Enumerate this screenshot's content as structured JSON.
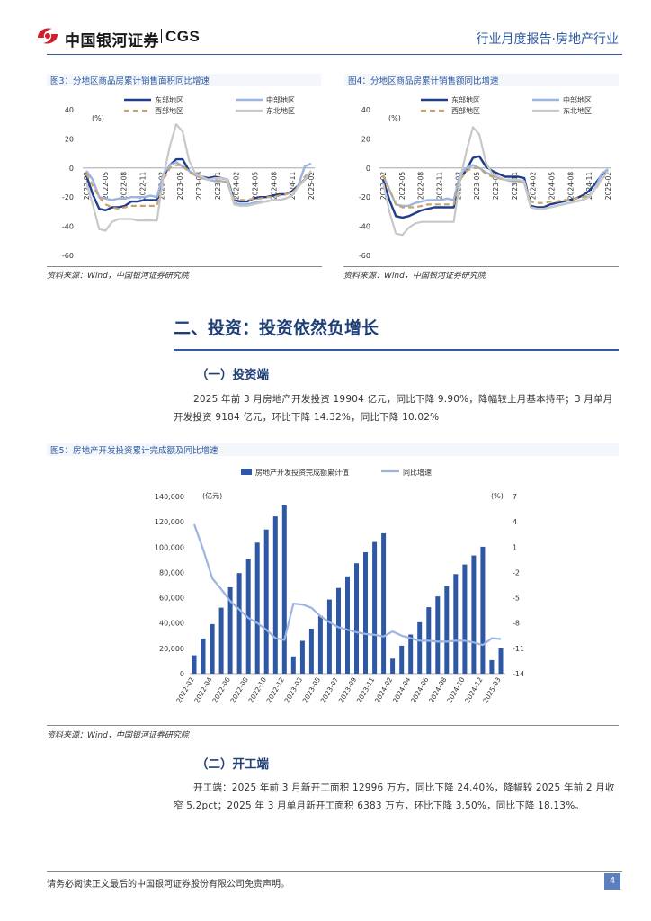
{
  "header": {
    "logo_cn": "中国银河证券",
    "logo_en": "CGS",
    "right": "行业月度报告·房地产行业"
  },
  "fig3": {
    "title": "图3：分地区商品房累计销售面积同比增速",
    "unit": "(%)",
    "source": "资料来源：Wind，中国银河证券研究院",
    "chart_data": {
      "type": "line",
      "ylim": [
        -60,
        40
      ],
      "yticks": [
        "40",
        "20",
        "0",
        "-20",
        "-40",
        "-60"
      ],
      "x_labels": [
        "2022-02",
        "2022-05",
        "2022-08",
        "2022-11",
        "2023-02",
        "2023-05",
        "2023-08",
        "2023-11",
        "2024-02",
        "2024-05",
        "2024-08",
        "2024-11",
        "2025-02"
      ],
      "series": [
        {
          "name": "东部地区",
          "color": "#1f3d8c",
          "width": 2.4,
          "dash": "",
          "values": [
            -5,
            -18,
            -28,
            -29,
            -27,
            -27,
            -26,
            -23,
            -23,
            -22,
            -22,
            -22,
            -6,
            2,
            6,
            6,
            -2,
            -5,
            -6,
            -7,
            -6,
            -7,
            -8,
            -22,
            -23,
            -23,
            -21,
            -20,
            -20,
            -19,
            -18,
            -18,
            -16,
            -12,
            -8,
            -3
          ]
        },
        {
          "name": "中部地区",
          "color": "#9bb4e0",
          "width": 2.4,
          "dash": "",
          "values": [
            -2,
            -8,
            -20,
            -21,
            -22,
            -21,
            -21,
            -20,
            -20,
            -20,
            -19,
            -20,
            -4,
            2,
            4,
            1,
            -2,
            -5,
            -7,
            -8,
            -9,
            -9,
            -10,
            -24,
            -25,
            -25,
            -24,
            -23,
            -23,
            -22,
            -22,
            -21,
            -19,
            -12,
            1,
            3
          ]
        },
        {
          "name": "西部地区",
          "color": "#c9a36a",
          "width": 2.2,
          "dash": "6,4",
          "values": [
            -4,
            -12,
            -20,
            -25,
            -27,
            -28,
            -27,
            -26,
            -26,
            -26,
            -26,
            -26,
            -8,
            0,
            2,
            2,
            -3,
            -5,
            -7,
            -8,
            -8,
            -9,
            -10,
            -21,
            -22,
            -22,
            -21,
            -21,
            -20,
            -20,
            -19,
            -18,
            -17,
            -13,
            -6,
            -2
          ]
        },
        {
          "name": "东北地区",
          "color": "#c8c8c8",
          "width": 2.2,
          "dash": "",
          "values": [
            -10,
            -25,
            -42,
            -43,
            -37,
            -35,
            -35,
            -35,
            -36,
            -36,
            -36,
            -36,
            -6,
            15,
            30,
            25,
            5,
            -4,
            -6,
            -8,
            -7,
            -7,
            -8,
            -25,
            -26,
            -26,
            -25,
            -24,
            -23,
            -22,
            -22,
            -21,
            -19,
            -13,
            -8,
            -2
          ]
        }
      ]
    }
  },
  "fig4": {
    "title": "图4：分地区商品房累计销售额同比增速",
    "unit": "(%)",
    "source": "资料来源：Wind，中国银河证券研究院",
    "chart_data": {
      "type": "line",
      "ylim": [
        -60,
        40
      ],
      "yticks": [
        "40",
        "20",
        "0",
        "-20",
        "-40",
        "-60"
      ],
      "x_labels": [
        "2022-02",
        "2022-05",
        "2022-08",
        "2022-11",
        "2023-02",
        "2023-05",
        "2023-08",
        "2023-11",
        "2024-02",
        "2024-05",
        "2024-08",
        "2024-11",
        "2025-02"
      ],
      "series": [
        {
          "name": "东部地区",
          "color": "#1f3d8c",
          "width": 2.4,
          "dash": "",
          "values": [
            -8,
            -22,
            -33,
            -34,
            -33,
            -31,
            -29,
            -28,
            -27,
            -27,
            -27,
            -27,
            -8,
            -1,
            7,
            8,
            1,
            -2,
            -4,
            -6,
            -6,
            -6,
            -7,
            -26,
            -27,
            -27,
            -25,
            -24,
            -23,
            -22,
            -21,
            -19,
            -16,
            -11,
            -5,
            -1
          ]
        },
        {
          "name": "中部地区",
          "color": "#9bb4e0",
          "width": 2.4,
          "dash": "",
          "values": [
            -5,
            -15,
            -25,
            -26,
            -26,
            -24,
            -23,
            -22,
            -22,
            -22,
            -21,
            -22,
            -4,
            0,
            2,
            0,
            -3,
            -5,
            -7,
            -8,
            -9,
            -9,
            -10,
            -27,
            -28,
            -28,
            -27,
            -26,
            -25,
            -24,
            -23,
            -22,
            -20,
            -14,
            -4,
            -1
          ]
        },
        {
          "name": "西部地区",
          "color": "#c9a36a",
          "width": 2.2,
          "dash": "6,4",
          "values": [
            -5,
            -15,
            -25,
            -27,
            -27,
            -27,
            -26,
            -25,
            -25,
            -25,
            -25,
            -25,
            -8,
            -2,
            0,
            0,
            -4,
            -6,
            -7,
            -8,
            -8,
            -9,
            -10,
            -23,
            -24,
            -24,
            -23,
            -23,
            -22,
            -22,
            -21,
            -20,
            -19,
            -15,
            -8,
            -3
          ]
        },
        {
          "name": "东北地区",
          "color": "#c8c8c8",
          "width": 2.2,
          "dash": "",
          "values": [
            -10,
            -30,
            -45,
            -46,
            -41,
            -38,
            -37,
            -37,
            -37,
            -37,
            -37,
            -37,
            -8,
            12,
            28,
            23,
            4,
            -4,
            -6,
            -8,
            -8,
            -8,
            -9,
            -27,
            -28,
            -28,
            -27,
            -26,
            -25,
            -24,
            -23,
            -22,
            -20,
            -14,
            -8,
            -2
          ]
        }
      ]
    }
  },
  "section2": {
    "title": "二、投资：投资依然负增长",
    "sub1": "（一）投资端",
    "para1_line1": "2025 年前 3 月房地产开发投资 19904 亿元，同比下降 9.90%，降幅较上月基本持平；3 月单月",
    "para1_line2": "开发投资 9184 亿元，环比下降 14.32%，同比下降 10.02%"
  },
  "fig5": {
    "title": "图5：房地产开发投资累计完成额及同比增速",
    "source": "资料来源：Wind，中国银河证券研究院",
    "left_unit": "(亿元)",
    "right_unit": "(%)",
    "chart_data": {
      "type": "bar",
      "series": [
        {
          "name": "房地产开发投资完成额累计值",
          "color": "#2e58a6",
          "values": [
            14499,
            27765,
            39154,
            52134,
            68314,
            79462,
            90809,
            103559,
            113945,
            124277,
            132895,
            13669,
            25974,
            35514,
            45701,
            58550,
            67717,
            76900,
            87269,
            95922,
            104045,
            110913,
            11842,
            22082,
            30928,
            40632,
            52529,
            61063,
            69284,
            78681,
            86309,
            93368,
            100280,
            10720,
            19904
          ]
        },
        {
          "name": "同比增速",
          "color": "#9bb4e0",
          "values": [
            3.7,
            0.7,
            -2.7,
            -4.0,
            -5.4,
            -6.4,
            -7.4,
            -8.0,
            -8.8,
            -9.8,
            -10.0,
            -5.7,
            -5.8,
            -6.2,
            -7.2,
            -7.9,
            -8.5,
            -8.8,
            -9.1,
            -9.3,
            -9.4,
            -9.6,
            -9.0,
            -9.5,
            -9.8,
            -10.1,
            -10.1,
            -10.2,
            -10.2,
            -10.1,
            -10.1,
            -10.3,
            -10.6,
            -9.8,
            -9.9
          ]
        }
      ],
      "ylim_left": [
        0,
        140000
      ],
      "yticks_left": [
        "140,000",
        "120,000",
        "100,000",
        "80,000",
        "60,000",
        "40,000",
        "20,000",
        "0"
      ],
      "ylim_right": [
        -14,
        7
      ],
      "yticks_right": [
        "7",
        "4",
        "1",
        "-2",
        "-5",
        "-8",
        "-11",
        "-14"
      ],
      "x_labels": [
        "2022-02",
        "2022-04",
        "2022-06",
        "2022-08",
        "2022-10",
        "2022-12",
        "2023-03",
        "2023-05",
        "2023-07",
        "2023-09",
        "2023-11",
        "2024-02",
        "2024-04",
        "2024-06",
        "2024-08",
        "2024-10",
        "2024-12",
        "2025-03"
      ]
    }
  },
  "section2b": {
    "sub2": "（二）开工端",
    "para2_line1": "开工端：2025 年前 3 月新开工面积 12996 万方，同比下降 24.40%，降幅较 2025 年前 2 月收",
    "para2_line2": "窄 5.2pct；2025 年 3 月单月新开工面积 6383 万方，环比下降 3.50%，同比下降 18.13%。"
  },
  "footer": {
    "disclaimer": "请务必阅读正文最后的中国银河证券股份有限公司免责声明。",
    "page_number": "4"
  }
}
